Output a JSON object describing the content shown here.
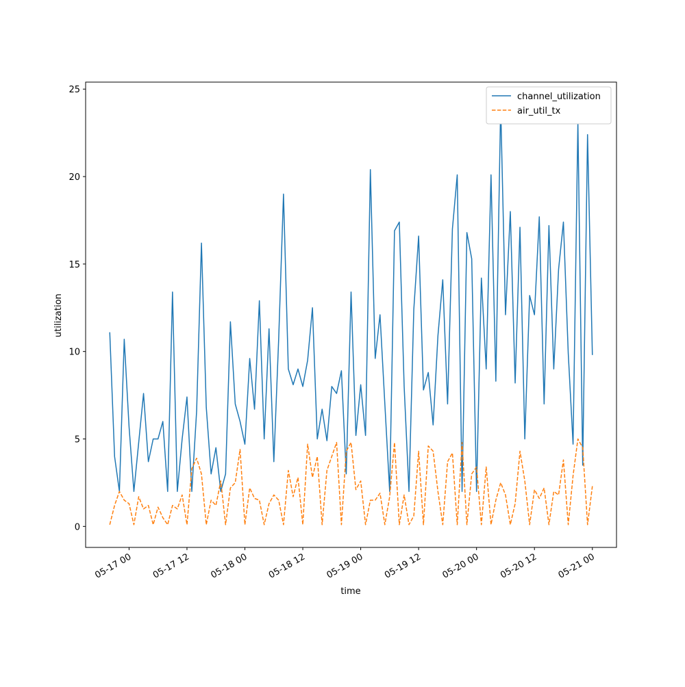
{
  "chart_data": {
    "type": "line",
    "xlabel": "time",
    "ylabel": "utilization",
    "x": [
      "05-16 20",
      "05-16 21",
      "05-16 22",
      "05-16 23",
      "05-17 00",
      "05-17 01",
      "05-17 02",
      "05-17 03",
      "05-17 04",
      "05-17 05",
      "05-17 06",
      "05-17 07",
      "05-17 08",
      "05-17 09",
      "05-17 10",
      "05-17 11",
      "05-17 12",
      "05-17 13",
      "05-17 14",
      "05-17 15",
      "05-17 16",
      "05-17 17",
      "05-17 18",
      "05-17 19",
      "05-17 20",
      "05-17 21",
      "05-17 22",
      "05-17 23",
      "05-18 00",
      "05-18 01",
      "05-18 02",
      "05-18 03",
      "05-18 04",
      "05-18 05",
      "05-18 06",
      "05-18 07",
      "05-18 08",
      "05-18 09",
      "05-18 10",
      "05-18 11",
      "05-18 12",
      "05-18 13",
      "05-18 14",
      "05-18 15",
      "05-18 16",
      "05-18 17",
      "05-18 18",
      "05-18 19",
      "05-18 20",
      "05-18 21",
      "05-18 22",
      "05-18 23",
      "05-19 00",
      "05-19 01",
      "05-19 02",
      "05-19 03",
      "05-19 04",
      "05-19 05",
      "05-19 06",
      "05-19 07",
      "05-19 08",
      "05-19 09",
      "05-19 10",
      "05-19 11",
      "05-19 12",
      "05-19 13",
      "05-19 14",
      "05-19 15",
      "05-19 16",
      "05-19 17",
      "05-19 18",
      "05-19 19",
      "05-19 20",
      "05-19 21",
      "05-19 22",
      "05-19 23",
      "05-20 00",
      "05-20 01",
      "05-20 02",
      "05-20 03",
      "05-20 04",
      "05-20 05",
      "05-20 06",
      "05-20 07",
      "05-20 08",
      "05-20 09",
      "05-20 10",
      "05-20 11",
      "05-20 12",
      "05-20 13",
      "05-20 14",
      "05-20 15",
      "05-20 16",
      "05-20 17",
      "05-20 18",
      "05-20 19",
      "05-20 20",
      "05-20 21",
      "05-20 22",
      "05-20 23",
      "05-21 00"
    ],
    "series": [
      {
        "name": "channel_utilization",
        "color": "#1f77b4",
        "dash": false,
        "values": [
          11.1,
          4.0,
          2.0,
          10.7,
          5.7,
          2.0,
          4.8,
          7.6,
          3.7,
          5.0,
          5.0,
          6.0,
          2.0,
          13.4,
          2.0,
          5.0,
          7.4,
          2.0,
          6.6,
          16.2,
          6.8,
          3.0,
          4.5,
          2.0,
          3.0,
          11.7,
          7.0,
          6.0,
          4.7,
          9.6,
          6.7,
          12.9,
          5.0,
          11.3,
          3.7,
          10.7,
          19.0,
          9.0,
          8.1,
          9.0,
          8.0,
          9.5,
          12.5,
          5.0,
          6.7,
          4.9,
          8.0,
          7.6,
          8.9,
          3.0,
          13.4,
          5.2,
          8.1,
          5.2,
          20.4,
          9.6,
          12.1,
          7.0,
          2.0,
          16.9,
          17.4,
          8.0,
          2.0,
          12.4,
          16.6,
          7.8,
          8.8,
          5.8,
          10.9,
          14.1,
          7.0,
          17.0,
          20.1,
          2.0,
          16.8,
          15.3,
          2.0,
          14.2,
          9.0,
          20.1,
          8.3,
          24.1,
          12.1,
          18.0,
          8.2,
          17.1,
          5.0,
          13.2,
          12.1,
          17.7,
          7.0,
          17.2,
          9.0,
          14.7,
          17.4,
          9.9,
          4.7,
          23.1,
          3.5,
          22.4,
          9.8
        ]
      },
      {
        "name": "air_util_tx",
        "color": "#ff7f0e",
        "dash": true,
        "values": [
          0.1,
          1.2,
          2.0,
          1.5,
          1.3,
          0.1,
          1.7,
          1.0,
          1.2,
          0.1,
          1.1,
          0.5,
          0.1,
          1.2,
          1.0,
          1.8,
          0.1,
          3.3,
          3.9,
          3.0,
          0.1,
          1.5,
          1.2,
          2.6,
          0.1,
          2.2,
          2.5,
          4.4,
          0.1,
          2.2,
          1.6,
          1.5,
          0.1,
          1.3,
          1.8,
          1.5,
          0.1,
          3.2,
          1.7,
          2.8,
          0.1,
          4.7,
          2.8,
          4.0,
          0.1,
          3.2,
          4.0,
          4.8,
          0.1,
          4.3,
          4.8,
          2.1,
          2.6,
          0.1,
          1.5,
          1.5,
          1.9,
          0.1,
          1.7,
          4.8,
          0.1,
          1.8,
          0.1,
          0.6,
          4.3,
          0.1,
          4.6,
          4.3,
          2.0,
          0.1,
          3.7,
          4.2,
          0.1,
          4.8,
          0.1,
          3.0,
          3.4,
          0.1,
          3.4,
          0.1,
          1.5,
          2.5,
          1.8,
          0.1,
          1.3,
          4.3,
          2.6,
          0.1,
          2.1,
          1.6,
          2.2,
          0.1,
          2.0,
          1.8,
          3.8,
          0.1,
          2.9,
          5.0,
          4.5,
          0.1,
          2.3
        ]
      }
    ],
    "xlim": [
      "05-16 15",
      "05-21 05"
    ],
    "xticks": [
      "05-17 00",
      "05-17 12",
      "05-18 00",
      "05-18 12",
      "05-19 00",
      "05-19 12",
      "05-20 00",
      "05-20 12",
      "05-21 00"
    ],
    "ylim": [
      -1.2,
      25.4
    ],
    "yticks": [
      0,
      5,
      10,
      15,
      20,
      25
    ],
    "grid": false,
    "legend": "upper right"
  }
}
